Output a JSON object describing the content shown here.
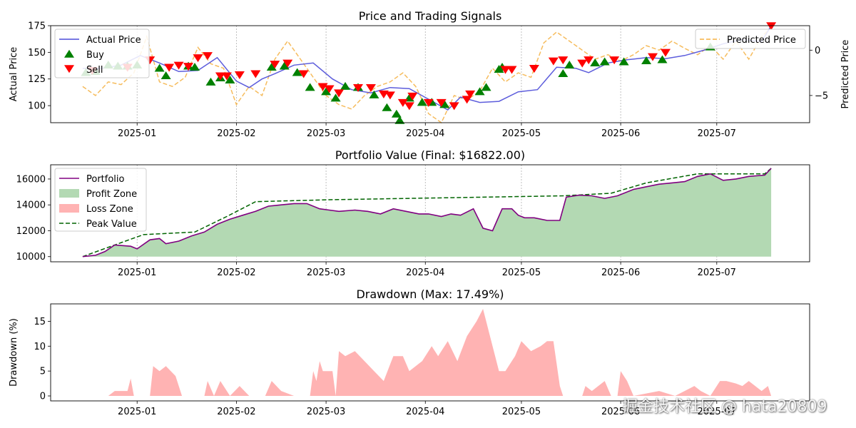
{
  "colors": {
    "actual": "#4b4bd8",
    "predicted": "#f5b041",
    "buy": "#008000",
    "sell": "#ff0000",
    "portfolio": "#800080",
    "profit": "#b3d9b3",
    "loss": "#ffb3b3",
    "peak": "#006400",
    "drawdown": "#ffb3b3"
  },
  "watermark": "掘金技术社区 @ hata20809",
  "chart_data": [
    {
      "type": "line",
      "title": "Price and Trading Signals",
      "ylabel": "Actual Price",
      "ylabel_right": "Predicted Price",
      "ylim": [
        84,
        175
      ],
      "ylim_right": [
        -8,
        2.7
      ],
      "y_ticks": [
        100,
        125,
        150,
        175
      ],
      "y_ticks_right": [
        -5,
        0
      ],
      "x_ticks": [
        "2025-01",
        "2025-02",
        "2025-03",
        "2025-04",
        "2025-05",
        "2025-06",
        "2025-07"
      ],
      "x_tick_days": [
        17,
        48,
        76,
        107,
        137,
        168,
        198
      ],
      "xlim": [
        -10,
        227
      ],
      "grid": "x",
      "legend_left": [
        "Actual Price",
        "Buy",
        "Sell"
      ],
      "legend_right": [
        "Predicted Price"
      ],
      "actual_price": [
        [
          0,
          135
        ],
        [
          6,
          135
        ],
        [
          12,
          138
        ],
        [
          18,
          147
        ],
        [
          24,
          140
        ],
        [
          30,
          132
        ],
        [
          36,
          133
        ],
        [
          42,
          145
        ],
        [
          48,
          123
        ],
        [
          52,
          117
        ],
        [
          56,
          125
        ],
        [
          60,
          130
        ],
        [
          66,
          138
        ],
        [
          72,
          140
        ],
        [
          78,
          125
        ],
        [
          84,
          115
        ],
        [
          90,
          112
        ],
        [
          96,
          117
        ],
        [
          102,
          116
        ],
        [
          108,
          106
        ],
        [
          114,
          96
        ],
        [
          118,
          108
        ],
        [
          124,
          103
        ],
        [
          130,
          104
        ],
        [
          136,
          113
        ],
        [
          142,
          115
        ],
        [
          148,
          136
        ],
        [
          154,
          135
        ],
        [
          158,
          131
        ],
        [
          164,
          140
        ],
        [
          170,
          143
        ],
        [
          176,
          145
        ],
        [
          182,
          144
        ],
        [
          188,
          147
        ],
        [
          194,
          152
        ],
        [
          200,
          158
        ],
        [
          206,
          162
        ],
        [
          212,
          160
        ],
        [
          215,
          175
        ]
      ],
      "predicted_price": [
        [
          0,
          -4
        ],
        [
          4,
          -5
        ],
        [
          8,
          -3.5
        ],
        [
          12,
          -3.8
        ],
        [
          16,
          -2.5
        ],
        [
          20,
          1.5
        ],
        [
          24,
          -3.5
        ],
        [
          28,
          -4
        ],
        [
          32,
          -3
        ],
        [
          36,
          0.3
        ],
        [
          40,
          -1.5
        ],
        [
          44,
          -2
        ],
        [
          48,
          -6
        ],
        [
          52,
          -4
        ],
        [
          56,
          -5
        ],
        [
          60,
          -1
        ],
        [
          64,
          1
        ],
        [
          68,
          -1
        ],
        [
          72,
          -3
        ],
        [
          76,
          -5
        ],
        [
          80,
          -6
        ],
        [
          84,
          -6.5
        ],
        [
          88,
          -5
        ],
        [
          92,
          -4
        ],
        [
          96,
          -3.5
        ],
        [
          100,
          -2.5
        ],
        [
          104,
          -4
        ],
        [
          108,
          -7
        ],
        [
          112,
          -8
        ],
        [
          116,
          -5
        ],
        [
          120,
          -5.5
        ],
        [
          124,
          -4.5
        ],
        [
          128,
          -2
        ],
        [
          132,
          -3.5
        ],
        [
          136,
          -2.5
        ],
        [
          140,
          -3
        ],
        [
          144,
          0.8
        ],
        [
          148,
          2
        ],
        [
          152,
          1
        ],
        [
          156,
          0
        ],
        [
          160,
          -1
        ],
        [
          164,
          -0.5
        ],
        [
          168,
          -1.2
        ],
        [
          172,
          -0.5
        ],
        [
          176,
          0.5
        ],
        [
          180,
          0
        ],
        [
          184,
          1
        ],
        [
          188,
          0.2
        ],
        [
          192,
          -0.5
        ],
        [
          196,
          0.5
        ],
        [
          200,
          -1
        ],
        [
          204,
          1
        ],
        [
          208,
          -1
        ],
        [
          212,
          1.5
        ],
        [
          215,
          2.5
        ]
      ],
      "buy_signals": [
        [
          1,
          131
        ],
        [
          4,
          132
        ],
        [
          8,
          138
        ],
        [
          11,
          137
        ],
        [
          14,
          137
        ],
        [
          17,
          138
        ],
        [
          24,
          135
        ],
        [
          26,
          128
        ],
        [
          33,
          137
        ],
        [
          35,
          136
        ],
        [
          40,
          122
        ],
        [
          43,
          126
        ],
        [
          46,
          124
        ],
        [
          59,
          136
        ],
        [
          63,
          137
        ],
        [
          67,
          131
        ],
        [
          71,
          117
        ],
        [
          76,
          113
        ],
        [
          79,
          107
        ],
        [
          82,
          118
        ],
        [
          86,
          117
        ],
        [
          91,
          110
        ],
        [
          95,
          98
        ],
        [
          98,
          92
        ],
        [
          99,
          86
        ],
        [
          102,
          107
        ],
        [
          106,
          103
        ],
        [
          109,
          103
        ],
        [
          113,
          101
        ],
        [
          124,
          113
        ],
        [
          126,
          117
        ],
        [
          130,
          134
        ],
        [
          131,
          136
        ],
        [
          150,
          130
        ],
        [
          152,
          138
        ],
        [
          160,
          140
        ],
        [
          163,
          141
        ],
        [
          169,
          141
        ],
        [
          176,
          142
        ],
        [
          181,
          143
        ],
        [
          196,
          155
        ]
      ],
      "sell_signals": [
        [
          3,
          133
        ],
        [
          14,
          136
        ],
        [
          21,
          143
        ],
        [
          27,
          136
        ],
        [
          30,
          138
        ],
        [
          33,
          137
        ],
        [
          36,
          145
        ],
        [
          39,
          147
        ],
        [
          43,
          128
        ],
        [
          45,
          128
        ],
        [
          49,
          129
        ],
        [
          54,
          130
        ],
        [
          60,
          139
        ],
        [
          64,
          140
        ],
        [
          69,
          130
        ],
        [
          75,
          118
        ],
        [
          77,
          116
        ],
        [
          80,
          112
        ],
        [
          86,
          117
        ],
        [
          90,
          117
        ],
        [
          94,
          111
        ],
        [
          96,
          110
        ],
        [
          100,
          103
        ],
        [
          102,
          100
        ],
        [
          103,
          109
        ],
        [
          108,
          103
        ],
        [
          112,
          103
        ],
        [
          116,
          100
        ],
        [
          120,
          106
        ],
        [
          121,
          111
        ],
        [
          132,
          134
        ],
        [
          134,
          134
        ],
        [
          141,
          135
        ],
        [
          147,
          142
        ],
        [
          150,
          143
        ],
        [
          156,
          140
        ],
        [
          158,
          143
        ],
        [
          166,
          143
        ],
        [
          178,
          146
        ],
        [
          182,
          150
        ],
        [
          215,
          175
        ]
      ]
    },
    {
      "type": "area",
      "title": "Portfolio Value (Final: $16822.00)",
      "ylim": [
        9600,
        17100
      ],
      "y_ticks": [
        10000,
        12000,
        14000,
        16000
      ],
      "x_ticks": [
        "2025-01",
        "2025-02",
        "2025-03",
        "2025-04",
        "2025-05",
        "2025-06",
        "2025-07"
      ],
      "x_tick_days": [
        17,
        48,
        76,
        107,
        137,
        168,
        198
      ],
      "xlim": [
        -10,
        227
      ],
      "grid": "x",
      "legend": [
        "Portfolio",
        "Profit Zone",
        "Loss Zone",
        "Peak Value"
      ],
      "baseline": 10000,
      "final_value": 16822,
      "portfolio": [
        [
          0,
          10000
        ],
        [
          4,
          10100
        ],
        [
          7,
          10400
        ],
        [
          10,
          10900
        ],
        [
          15,
          10800
        ],
        [
          17,
          10600
        ],
        [
          21,
          11300
        ],
        [
          24,
          11400
        ],
        [
          26,
          11000
        ],
        [
          30,
          11200
        ],
        [
          34,
          11600
        ],
        [
          38,
          11900
        ],
        [
          42,
          12500
        ],
        [
          46,
          12900
        ],
        [
          50,
          13200
        ],
        [
          54,
          13500
        ],
        [
          58,
          13900
        ],
        [
          62,
          14000
        ],
        [
          66,
          14100
        ],
        [
          70,
          14100
        ],
        [
          74,
          13700
        ],
        [
          77,
          13600
        ],
        [
          80,
          13500
        ],
        [
          85,
          13600
        ],
        [
          89,
          13500
        ],
        [
          93,
          13300
        ],
        [
          97,
          13700
        ],
        [
          101,
          13500
        ],
        [
          105,
          13300
        ],
        [
          108,
          13300
        ],
        [
          112,
          13100
        ],
        [
          115,
          13300
        ],
        [
          118,
          13200
        ],
        [
          122,
          13700
        ],
        [
          125,
          12200
        ],
        [
          128,
          12000
        ],
        [
          131,
          13700
        ],
        [
          134,
          13700
        ],
        [
          136,
          13200
        ],
        [
          138,
          13000
        ],
        [
          141,
          13000
        ],
        [
          145,
          12800
        ],
        [
          149,
          12800
        ],
        [
          151,
          14600
        ],
        [
          155,
          14750
        ],
        [
          159,
          14700
        ],
        [
          163,
          14500
        ],
        [
          167,
          14700
        ],
        [
          172,
          15200
        ],
        [
          176,
          15400
        ],
        [
          180,
          15600
        ],
        [
          184,
          15700
        ],
        [
          188,
          15800
        ],
        [
          192,
          16200
        ],
        [
          196,
          16400
        ],
        [
          200,
          15900
        ],
        [
          204,
          16000
        ],
        [
          208,
          16200
        ],
        [
          213,
          16300
        ],
        [
          215,
          16822
        ]
      ],
      "peak": [
        [
          0,
          10000
        ],
        [
          10,
          10900
        ],
        [
          19,
          11700
        ],
        [
          35,
          11900
        ],
        [
          45,
          13100
        ],
        [
          54,
          14250
        ],
        [
          77,
          14400
        ],
        [
          150,
          14700
        ],
        [
          165,
          14900
        ],
        [
          176,
          15700
        ],
        [
          192,
          16400
        ],
        [
          213,
          16400
        ],
        [
          215,
          16822
        ]
      ]
    },
    {
      "type": "area",
      "title": "Drawdown (Max: 17.49%)",
      "ylabel": "Drawdown (%)",
      "ylim": [
        -1,
        18.5
      ],
      "y_ticks": [
        0,
        5,
        10,
        15
      ],
      "x_ticks": [
        "2025-01",
        "2025-02",
        "2025-03",
        "2025-04",
        "2025-05",
        "2025-06",
        "2025-07"
      ],
      "x_tick_days": [
        17,
        48,
        76,
        107,
        137,
        168,
        198
      ],
      "xlim": [
        -10,
        227
      ],
      "max_drawdown": 17.49,
      "drawdown": [
        [
          0,
          0
        ],
        [
          8,
          0
        ],
        [
          10,
          1
        ],
        [
          14,
          1
        ],
        [
          15,
          3.5
        ],
        [
          16,
          0
        ],
        [
          21,
          0
        ],
        [
          22,
          6
        ],
        [
          24,
          5
        ],
        [
          26,
          6
        ],
        [
          29,
          4
        ],
        [
          31,
          0
        ],
        [
          38,
          0
        ],
        [
          39,
          3
        ],
        [
          41,
          0
        ],
        [
          43,
          3
        ],
        [
          46,
          0
        ],
        [
          49,
          2
        ],
        [
          52,
          0
        ],
        [
          57,
          0
        ],
        [
          59,
          3
        ],
        [
          62,
          1
        ],
        [
          66,
          0
        ],
        [
          71,
          0
        ],
        [
          72,
          5
        ],
        [
          73,
          3
        ],
        [
          74,
          7
        ],
        [
          75,
          5
        ],
        [
          78,
          5
        ],
        [
          79,
          0
        ],
        [
          80,
          9
        ],
        [
          82,
          8
        ],
        [
          85,
          9
        ],
        [
          88,
          7
        ],
        [
          91,
          5
        ],
        [
          94,
          3
        ],
        [
          97,
          8
        ],
        [
          100,
          8
        ],
        [
          102,
          5
        ],
        [
          106,
          7
        ],
        [
          109,
          10
        ],
        [
          111,
          8
        ],
        [
          114,
          11
        ],
        [
          117,
          7
        ],
        [
          120,
          12
        ],
        [
          123,
          15
        ],
        [
          125,
          17.5
        ],
        [
          128,
          10
        ],
        [
          130,
          5
        ],
        [
          132,
          5
        ],
        [
          135,
          8
        ],
        [
          137,
          11
        ],
        [
          140,
          9
        ],
        [
          143,
          10
        ],
        [
          145,
          11
        ],
        [
          147,
          11
        ],
        [
          149,
          2
        ],
        [
          150,
          0
        ],
        [
          156,
          0
        ],
        [
          157,
          2
        ],
        [
          159,
          1
        ],
        [
          161,
          2
        ],
        [
          163,
          3
        ],
        [
          165,
          0
        ],
        [
          167,
          0
        ],
        [
          168,
          5
        ],
        [
          170,
          3
        ],
        [
          172,
          0
        ],
        [
          180,
          1
        ],
        [
          185,
          0
        ],
        [
          191,
          2
        ],
        [
          193,
          1
        ],
        [
          196,
          0
        ],
        [
          199,
          3
        ],
        [
          201,
          3
        ],
        [
          204,
          2.5
        ],
        [
          206,
          2
        ],
        [
          208,
          3
        ],
        [
          210,
          2
        ],
        [
          212,
          1
        ],
        [
          214,
          2
        ],
        [
          215,
          0
        ]
      ]
    }
  ]
}
